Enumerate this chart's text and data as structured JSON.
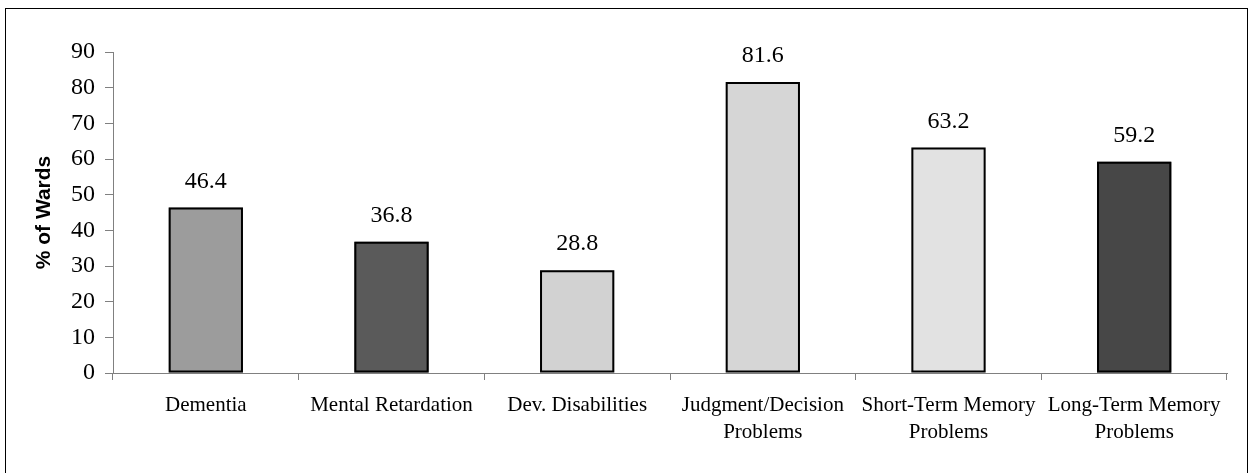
{
  "chart_data": {
    "type": "bar",
    "ylabel": "% of Wards",
    "categories": [
      "Dementia",
      "Mental Retardation",
      "Dev. Disabilities",
      "Judgment/Decision Problems",
      "Short-Term Memory Problems",
      "Long-Term Memory Problems"
    ],
    "values": [
      46.4,
      36.8,
      28.8,
      81.6,
      63.2,
      59.2
    ],
    "colors": [
      "#9c9c9c",
      "#5a5a5a",
      "#d2d2d2",
      "#d6d6d6",
      "#e2e2e2",
      "#474747"
    ],
    "ylim": [
      0,
      90
    ],
    "yticks": [
      0,
      10,
      20,
      30,
      40,
      50,
      60,
      70,
      80,
      90
    ],
    "grid": false,
    "legend": false,
    "data_labels": true
  }
}
